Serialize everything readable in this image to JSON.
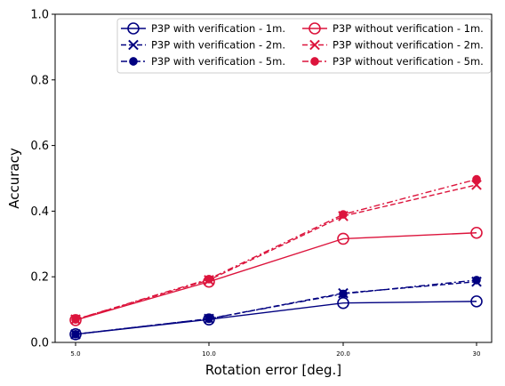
{
  "chart_data": {
    "type": "line",
    "categories": [
      "5.0",
      "10.0",
      "20.0",
      "30"
    ],
    "xlabel": "Rotation error [deg.]",
    "ylabel": "Accuracy",
    "ylim": [
      0,
      1.0
    ],
    "yticks": [
      "0.0",
      "0.2",
      "0.4",
      "0.6",
      "0.8",
      "1.0"
    ],
    "legend_position": "top-right",
    "legend_columns": 2,
    "grid": false,
    "series": [
      {
        "name": "P3P with verification - 1m.",
        "values": [
          0.025,
          0.07,
          0.12,
          0.125
        ],
        "color": "#000080",
        "marker": "circle-open",
        "dash": "solid"
      },
      {
        "name": "P3P with verification - 2m.",
        "values": [
          0.025,
          0.072,
          0.15,
          0.185
        ],
        "color": "#000080",
        "marker": "x",
        "dash": "dashed"
      },
      {
        "name": "P3P with verification - 5m.",
        "values": [
          0.025,
          0.072,
          0.148,
          0.19
        ],
        "color": "#000080",
        "marker": "dot",
        "dash": "dashdot"
      },
      {
        "name": "P3P without verification - 1m.",
        "values": [
          0.068,
          0.185,
          0.316,
          0.334
        ],
        "color": "#dc143c",
        "marker": "circle-open",
        "dash": "solid"
      },
      {
        "name": "P3P without verification - 2m.",
        "values": [
          0.07,
          0.19,
          0.385,
          0.48
        ],
        "color": "#dc143c",
        "marker": "x",
        "dash": "dashed"
      },
      {
        "name": "P3P without verification - 5m.",
        "values": [
          0.07,
          0.193,
          0.39,
          0.497
        ],
        "color": "#dc143c",
        "marker": "dot",
        "dash": "dashdot"
      }
    ]
  }
}
